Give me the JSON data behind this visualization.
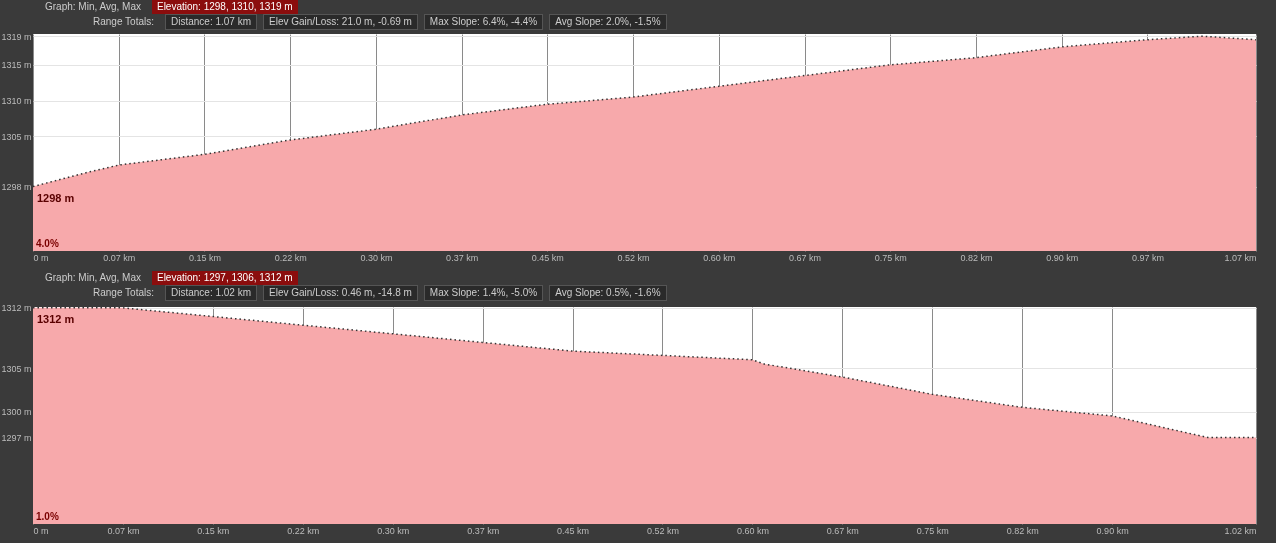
{
  "chart_data": [
    {
      "type": "area",
      "annotations": [
        "Graph: Min, Avg, Max",
        "Elevation: 1298, 1310, 1319 m",
        "Range Totals:",
        "Distance: 1.07 km",
        "Elev Gain/Loss: 21.0 m, -0.69 m",
        "Max Slope: 6.4%, -4.4%",
        "Avg Slope: 2.0%, -1.5%",
        {
          "text": "1298 m",
          "x": 0,
          "y": 1298
        },
        "4.0%"
      ],
      "x": [
        0,
        0.048,
        0.075,
        0.15,
        0.225,
        0.3,
        0.375,
        0.45,
        0.525,
        0.6,
        0.675,
        0.75,
        0.825,
        0.9,
        0.975,
        1.023,
        1.07
      ],
      "series": [
        {
          "color": "#f7a9ab",
          "values": [
            1298,
            1300,
            1301,
            1302.5,
            1304.5,
            1306,
            1308,
            1309.5,
            1310.5,
            1312,
            1313.5,
            1315,
            1316,
            1317.5,
            1318.5,
            1319,
            1318.5
          ]
        }
      ],
      "xlim": [
        0,
        1.07
      ],
      "ylim": [
        1289,
        1319.3
      ],
      "xticks": [
        {
          "value": 0,
          "label": "0 m"
        },
        {
          "value": 0.075,
          "label": "0.07 km"
        },
        {
          "value": 0.15,
          "label": "0.15 km"
        },
        {
          "value": 0.225,
          "label": "0.22 km"
        },
        {
          "value": 0.3,
          "label": "0.30 km"
        },
        {
          "value": 0.375,
          "label": "0.37 km"
        },
        {
          "value": 0.45,
          "label": "0.45 km"
        },
        {
          "value": 0.525,
          "label": "0.52 km"
        },
        {
          "value": 0.6,
          "label": "0.60 km"
        },
        {
          "value": 0.675,
          "label": "0.67 km"
        },
        {
          "value": 0.75,
          "label": "0.75 km"
        },
        {
          "value": 0.825,
          "label": "0.82 km"
        },
        {
          "value": 0.9,
          "label": "0.90 km"
        },
        {
          "value": 0.975,
          "label": "0.97 km"
        },
        {
          "value": 1.07,
          "label": "1.07 km"
        }
      ],
      "yticks": [
        {
          "value": 1298,
          "label": "1298 m"
        },
        {
          "value": 1305,
          "label": "1305 m"
        },
        {
          "value": 1310,
          "label": "1310 m"
        },
        {
          "value": 1315,
          "label": "1315 m"
        },
        {
          "value": 1319,
          "label": "1319 m"
        }
      ],
      "grid": true,
      "line_style": "dotted"
    },
    {
      "type": "area",
      "annotations": [
        "Graph: Min, Avg, Max",
        "Elevation: 1297, 1306, 1312 m",
        "Range Totals:",
        "Distance: 1.02 km",
        "Elev Gain/Loss: 0.46 m, -14.8 m",
        "Max Slope: 1.4%, -5.0%",
        "Avg Slope: 0.5%, -1.6%",
        {
          "text": "1312 m",
          "x": 0,
          "y": 1312
        },
        "1.0%"
      ],
      "x": [
        0,
        0.075,
        0.15,
        0.225,
        0.3,
        0.375,
        0.45,
        0.525,
        0.6,
        0.61,
        0.675,
        0.75,
        0.825,
        0.9,
        0.98,
        1.02
      ],
      "series": [
        {
          "color": "#f7a9ab",
          "values": [
            1312,
            1312,
            1311,
            1310,
            1309,
            1308,
            1307,
            1306.5,
            1306,
            1305.5,
            1304,
            1302,
            1300.5,
            1299.5,
            1297,
            1297
          ]
        }
      ],
      "xlim": [
        0,
        1.02
      ],
      "ylim": [
        1287,
        1312.1
      ],
      "xticks": [
        {
          "value": 0,
          "label": "0 m"
        },
        {
          "value": 0.075,
          "label": "0.07 km"
        },
        {
          "value": 0.15,
          "label": "0.15 km"
        },
        {
          "value": 0.225,
          "label": "0.22 km"
        },
        {
          "value": 0.3,
          "label": "0.30 km"
        },
        {
          "value": 0.375,
          "label": "0.37 km"
        },
        {
          "value": 0.45,
          "label": "0.45 km"
        },
        {
          "value": 0.525,
          "label": "0.52 km"
        },
        {
          "value": 0.6,
          "label": "0.60 km"
        },
        {
          "value": 0.675,
          "label": "0.67 km"
        },
        {
          "value": 0.75,
          "label": "0.75 km"
        },
        {
          "value": 0.825,
          "label": "0.82 km"
        },
        {
          "value": 0.9,
          "label": "0.90 km"
        },
        {
          "value": 1.02,
          "label": "1.02 km"
        }
      ],
      "yticks": [
        {
          "value": 1297,
          "label": "1297 m"
        },
        {
          "value": 1300,
          "label": "1300 m"
        },
        {
          "value": 1305,
          "label": "1305 m"
        },
        {
          "value": 1312,
          "label": "1312 m"
        }
      ],
      "grid": true,
      "line_style": "dotted"
    }
  ]
}
